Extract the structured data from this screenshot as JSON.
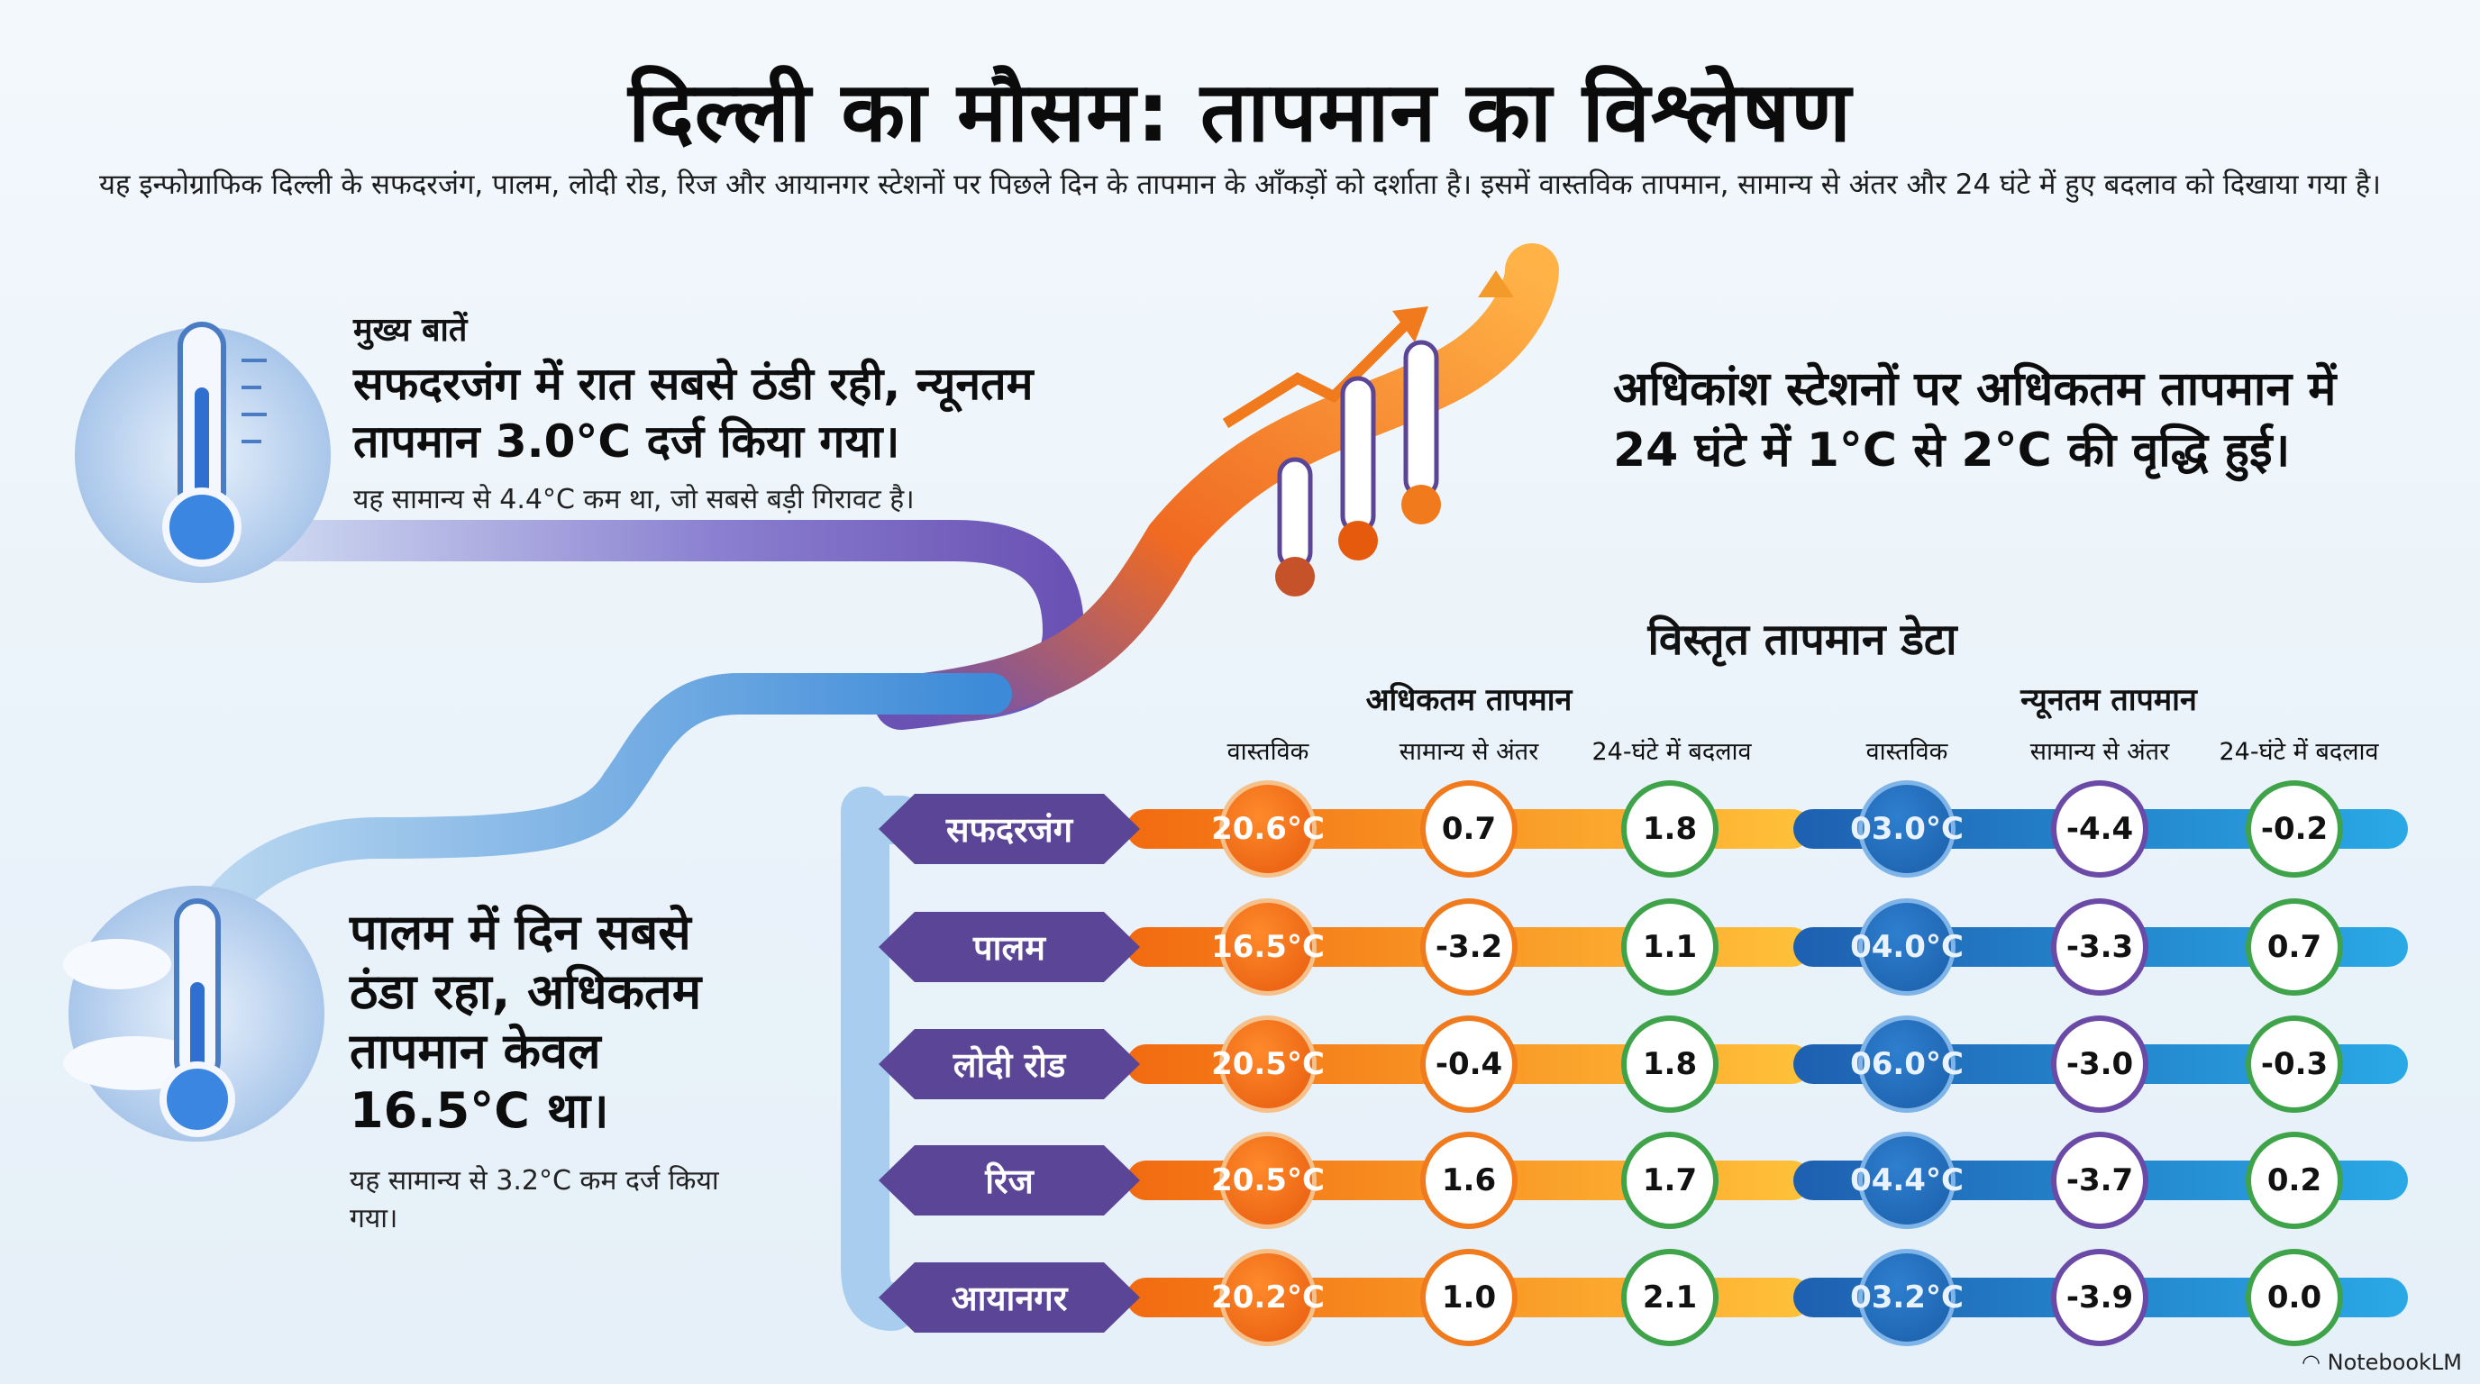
{
  "title": "दिल्ली का मौसम: तापमान का विश्लेषण",
  "subtitle": "यह इन्फोग्राफिक दिल्ली के सफदरजंग, पालम, लोदी रोड, रिज और आयानगर स्टेशनों पर पिछले दिन के तापमान के आँकड़ों को दर्शाता है। इसमें वास्तविक तापमान, सामान्य से अंतर और 24 घंटे में हुए बदलाव को दिखाया गया है।",
  "highlights": {
    "heading": "मुख्य बातें",
    "night": {
      "headline": "सफदरजंग में रात सबसे ठंडी रही, न्यूनतम तापमान 3.0°C दर्ज किया गया।",
      "note": "यह सामान्य से 4.4°C कम था, जो सबसे बड़ी गिरावट है।"
    },
    "rise": {
      "headline": "अधिकांश स्टेशनों पर अधिकतम तापमान में 24 घंटे में 1°C से 2°C की वृद्धि हुई।"
    },
    "day": {
      "headline": "पालम में दिन सबसे ठंडा रहा, अधिकतम तापमान केवल 16.5°C था।",
      "note": "यह सामान्य से 3.2°C कम दर्ज किया गया।"
    }
  },
  "table": {
    "title": "विस्तृत तापमान डेटा",
    "max_group": "अधिकतम तापमान",
    "min_group": "न्यूनतम तापमान",
    "columns": [
      "वास्तविक",
      "सामान्य से अंतर",
      "24-घंटे में बदलाव",
      "वास्तविक",
      "सामान्य से अंतर",
      "24-घंटे में बदलाव"
    ],
    "rows": [
      {
        "station": "सफदरजंग",
        "max_actual": "20.6°C",
        "max_dep": "0.7",
        "max_change": "1.8",
        "min_actual": "03.0°C",
        "min_dep": "-4.4",
        "min_change": "-0.2"
      },
      {
        "station": "पालम",
        "max_actual": "16.5°C",
        "max_dep": "-3.2",
        "max_change": "1.1",
        "min_actual": "04.0°C",
        "min_dep": "-3.3",
        "min_change": "0.7"
      },
      {
        "station": "लोदी रोड",
        "max_actual": "20.5°C",
        "max_dep": "-0.4",
        "max_change": "1.8",
        "min_actual": "06.0°C",
        "min_dep": "-3.0",
        "min_change": "-0.3"
      },
      {
        "station": "रिज",
        "max_actual": "20.5°C",
        "max_dep": "1.6",
        "max_change": "1.7",
        "min_actual": "04.4°C",
        "min_dep": "-3.7",
        "min_change": "0.2"
      },
      {
        "station": "आयानगर",
        "max_actual": "20.2°C",
        "max_dep": "1.0",
        "max_change": "2.1",
        "min_actual": "03.2°C",
        "min_dep": "-3.9",
        "min_change": "0.0"
      }
    ]
  },
  "brand": "NotebookLM",
  "icons": [
    "cold-thermometer-icon",
    "rising-thermometers-icon",
    "cloudy-thermometer-icon",
    "notebooklm-logo-icon"
  ],
  "colors": {
    "orange": "#f07a1c",
    "blue": "#1b5ea8",
    "purple": "#5a4596",
    "green": "#3fa34a"
  }
}
